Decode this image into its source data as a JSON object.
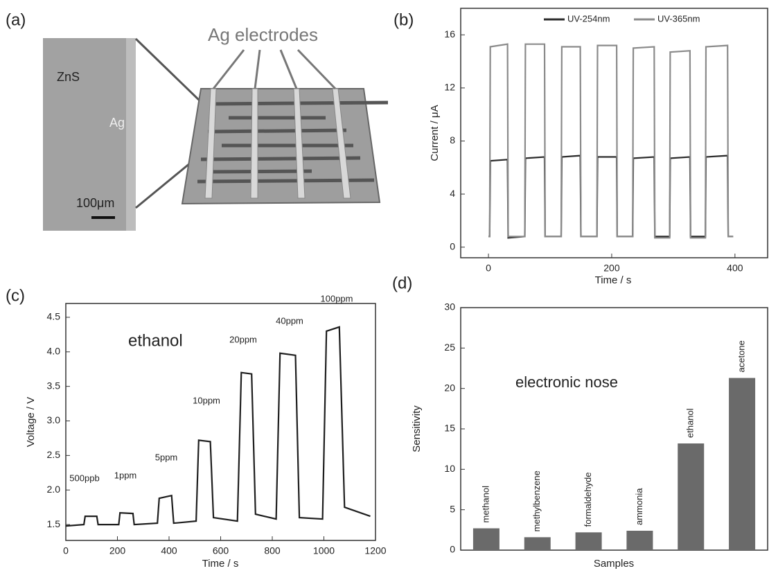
{
  "panel_a": {
    "label": "(a)",
    "material": "ZnS",
    "electrode": "Ag",
    "scale": "100μm",
    "diagram_title": "Ag electrodes"
  },
  "chart_data": [
    {
      "type": "line",
      "panel_label": "(b)",
      "x_label": "Time / s",
      "y_label": "Current / μA",
      "xlim": [
        -45,
        453
      ],
      "xticks": [
        0,
        200,
        400
      ],
      "ylim": [
        -0.8,
        18
      ],
      "yticks": [
        0,
        4,
        8,
        12,
        16
      ],
      "legend": "top",
      "x": [
        0,
        2,
        3,
        31,
        32,
        59,
        60,
        91,
        92,
        118,
        119,
        149,
        150,
        176,
        177,
        208,
        209,
        234,
        235,
        269,
        270,
        294,
        295,
        327,
        328,
        352,
        353,
        388,
        389,
        397
      ],
      "series": [
        {
          "name": "UV-254nm",
          "color": "#2a2a2a",
          "values": [
            0.8,
            0.8,
            6.5,
            6.6,
            0.7,
            0.8,
            6.7,
            6.8,
            0.8,
            0.8,
            6.8,
            6.9,
            0.8,
            0.8,
            6.8,
            6.8,
            0.8,
            0.8,
            6.7,
            6.8,
            0.8,
            0.8,
            6.7,
            6.8,
            0.8,
            0.8,
            6.8,
            6.9,
            0.8,
            0.8
          ]
        },
        {
          "name": "UV-365nm",
          "color": "#8a8a8a",
          "values": [
            0.8,
            0.8,
            15.1,
            15.3,
            0.8,
            0.8,
            15.3,
            15.3,
            0.8,
            0.8,
            15.1,
            15.1,
            0.8,
            0.8,
            15.2,
            15.2,
            0.8,
            0.8,
            15.0,
            15.1,
            0.7,
            0.7,
            14.7,
            14.8,
            0.7,
            0.7,
            15.1,
            15.2,
            0.8,
            0.8
          ]
        }
      ]
    },
    {
      "type": "line",
      "panel_label": "(c)",
      "x_label": "Time / s",
      "y_label": "Voltage / V",
      "xlim": [
        0,
        1200
      ],
      "xticks": [
        0,
        200,
        400,
        600,
        800,
        1000,
        1200
      ],
      "ylim": [
        1.27,
        4.7
      ],
      "yticks": [
        1.5,
        {
          "value": 2,
          "label": "2.0"
        },
        2.5,
        {
          "value": 3,
          "label": "3.0"
        },
        3.5,
        {
          "value": 4,
          "label": "4.0"
        },
        4.5
      ],
      "x": [
        0,
        70,
        75,
        120,
        125,
        205,
        210,
        260,
        265,
        355,
        362,
        410,
        418,
        505,
        515,
        560,
        572,
        665,
        680,
        720,
        735,
        815,
        830,
        890,
        905,
        995,
        1010,
        1060,
        1080,
        1180
      ],
      "series": [
        {
          "color": "#1e1e1e",
          "values": [
            1.48,
            1.5,
            1.62,
            1.62,
            1.5,
            1.5,
            1.67,
            1.66,
            1.5,
            1.52,
            1.88,
            1.92,
            1.52,
            1.55,
            2.72,
            2.7,
            1.6,
            1.55,
            3.7,
            3.68,
            1.65,
            1.58,
            3.98,
            3.95,
            1.6,
            1.58,
            4.3,
            4.36,
            1.75,
            1.62
          ]
        }
      ],
      "annotations": [
        "500ppb",
        "1ppm",
        "5ppm",
        "10ppm",
        "20ppm",
        "40ppm",
        "100ppm",
        "ethanol"
      ]
    },
    {
      "type": "bar",
      "panel_label": "(d)",
      "x_label": "Samples",
      "y_label": "Sensitivity",
      "categories": [
        "methanol",
        "methylbenzene",
        "formaldehyde",
        "ammonia",
        "ethanol",
        "acetone"
      ],
      "values": [
        2.7,
        1.6,
        2.2,
        2.4,
        13.2,
        21.3
      ],
      "color": "#6a6a6a",
      "ylim": [
        0,
        30
      ],
      "yticks": [
        0,
        5,
        10,
        15,
        20,
        25,
        30
      ],
      "annotations": [
        "electronic nose"
      ]
    }
  ]
}
